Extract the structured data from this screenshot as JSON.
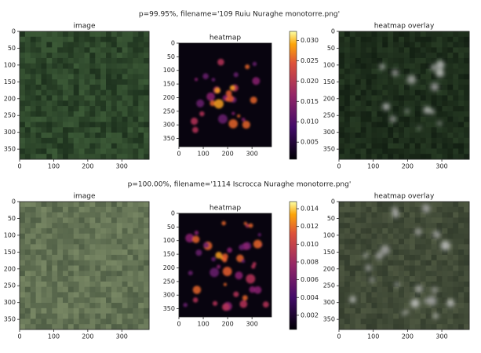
{
  "figures": [
    {
      "title": "p=99.95%, filename='109 Ruiu Nuraghe monotorre.png'",
      "panels": [
        {
          "title": "image",
          "xlim": [
            0,
            380
          ],
          "ylim": [
            380,
            0
          ],
          "xticks": [
            0,
            100,
            200,
            300
          ],
          "yticks": [
            0,
            50,
            100,
            150,
            200,
            250,
            300,
            350
          ]
        },
        {
          "title": "heatmap",
          "xlim": [
            0,
            380
          ],
          "ylim": [
            380,
            0
          ],
          "xticks": [
            0,
            100,
            200,
            300
          ],
          "yticks": [
            0,
            50,
            100,
            150,
            200,
            250,
            300,
            350
          ]
        },
        {
          "title": "heatmap overlay",
          "xlim": [
            0,
            380
          ],
          "ylim": [
            380,
            0
          ],
          "xticks": [
            0,
            100,
            200,
            300
          ],
          "yticks": [
            0,
            50,
            100,
            150,
            200,
            250,
            300,
            350
          ]
        }
      ],
      "colorbar": {
        "lim": [
          0.0008,
          0.0322
        ],
        "ticks": [
          0.005,
          {
            "value": 0.01,
            "label": "0.010"
          },
          0.015,
          {
            "value": 0.02,
            "label": "0.020"
          },
          0.025,
          {
            "value": 0.03,
            "label": "0.030"
          }
        ]
      }
    },
    {
      "title": "p=100.00%, filename='1114 Iscrocca Nuraghe monotorre.png'",
      "panels": [
        {
          "title": "image",
          "xlim": [
            0,
            380
          ],
          "ylim": [
            380,
            0
          ],
          "xticks": [
            0,
            100,
            200,
            300
          ],
          "yticks": [
            0,
            50,
            100,
            150,
            200,
            250,
            300,
            350
          ]
        },
        {
          "title": "heatmap",
          "xlim": [
            0,
            380
          ],
          "ylim": [
            380,
            0
          ],
          "xticks": [
            0,
            100,
            200,
            300
          ],
          "yticks": [
            0,
            50,
            100,
            150,
            200,
            250,
            300,
            350
          ]
        },
        {
          "title": "heatmap overlay",
          "xlim": [
            0,
            380
          ],
          "ylim": [
            380,
            0
          ],
          "xticks": [
            0,
            100,
            200,
            300
          ],
          "yticks": [
            0,
            50,
            100,
            150,
            200,
            250,
            300,
            350
          ]
        }
      ],
      "colorbar": {
        "lim": [
          0.0004,
          0.0148
        ],
        "ticks": [
          0.002,
          0.004,
          0.006,
          0.008,
          {
            "value": 0.01,
            "label": "0.010"
          },
          0.012,
          0.014
        ]
      }
    }
  ]
}
